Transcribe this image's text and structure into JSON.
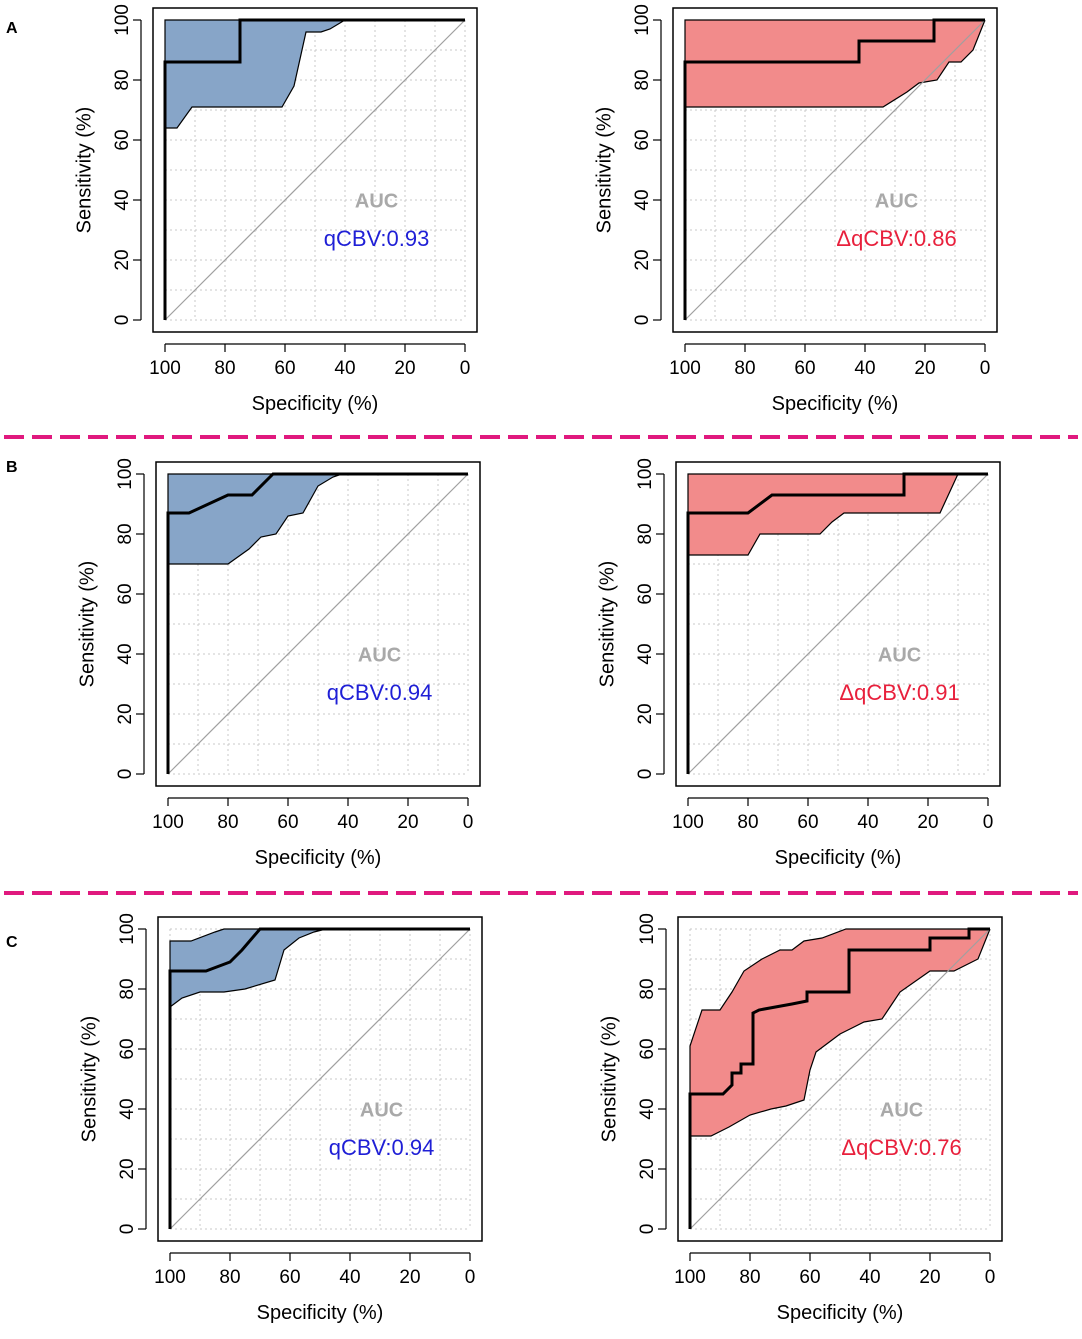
{
  "colors": {
    "separator": "#e0197e",
    "blue_fill": "#87a5c8",
    "red_fill": "#f28b8b",
    "blue_text": "#1f1fd6",
    "red_text": "#e8203c",
    "auc_title": "#a9a9a9",
    "diagonal": "#a0a0a0",
    "grid": "#c8c8c8"
  },
  "panel_labels": [
    "A",
    "B",
    "C"
  ],
  "chart_data": [
    {
      "type": "line",
      "row": "A",
      "title": "",
      "xlabel": "Specificity (%)",
      "ylabel": "Sensitivity (%)",
      "xlim": [
        100,
        0
      ],
      "ylim": [
        0,
        100
      ],
      "xticks": [
        "100",
        "80",
        "60",
        "40",
        "20",
        "0"
      ],
      "yticks": [
        "0",
        "20",
        "40",
        "60",
        "80",
        "100"
      ],
      "auc_title": "AUC",
      "auc_label": "qCBV:0.93",
      "fill": "blue",
      "roc": [
        [
          100,
          0
        ],
        [
          100,
          86
        ],
        [
          75,
          86
        ],
        [
          75,
          100
        ],
        [
          0,
          100
        ]
      ],
      "ci_upper": [
        [
          100,
          86
        ],
        [
          100,
          100
        ],
        [
          0,
          100
        ]
      ],
      "ci_lower": [
        [
          100,
          64
        ],
        [
          96,
          64
        ],
        [
          91,
          71
        ],
        [
          88,
          71
        ],
        [
          61,
          71
        ],
        [
          57,
          78
        ],
        [
          53,
          96
        ],
        [
          48,
          96
        ],
        [
          45,
          97
        ],
        [
          40,
          100
        ],
        [
          0,
          100
        ]
      ]
    },
    {
      "type": "line",
      "row": "A",
      "title": "",
      "xlabel": "Specificity (%)",
      "ylabel": "Sensitivity (%)",
      "xlim": [
        100,
        0
      ],
      "ylim": [
        0,
        100
      ],
      "xticks": [
        "100",
        "80",
        "60",
        "40",
        "20",
        "0"
      ],
      "yticks": [
        "0",
        "20",
        "40",
        "60",
        "80",
        "100"
      ],
      "auc_title": "AUC",
      "auc_label": "ΔqCBV:0.86",
      "fill": "red",
      "roc": [
        [
          100,
          0
        ],
        [
          100,
          86
        ],
        [
          42,
          86
        ],
        [
          42,
          93
        ],
        [
          17,
          93
        ],
        [
          17,
          100
        ],
        [
          0,
          100
        ]
      ],
      "ci_upper": [
        [
          100,
          71
        ],
        [
          100,
          100
        ],
        [
          0,
          100
        ]
      ],
      "ci_lower": [
        [
          100,
          71
        ],
        [
          34,
          71
        ],
        [
          26,
          76
        ],
        [
          22,
          79
        ],
        [
          16,
          80
        ],
        [
          12,
          86
        ],
        [
          8,
          86
        ],
        [
          4,
          90
        ],
        [
          0,
          100
        ]
      ]
    },
    {
      "type": "line",
      "row": "B",
      "title": "",
      "xlabel": "Specificity (%)",
      "ylabel": "Sensitivity (%)",
      "xlim": [
        100,
        0
      ],
      "ylim": [
        0,
        100
      ],
      "xticks": [
        "100",
        "80",
        "60",
        "40",
        "20",
        "0"
      ],
      "yticks": [
        "0",
        "20",
        "40",
        "60",
        "80",
        "100"
      ],
      "auc_title": "AUC",
      "auc_label": "qCBV:0.94",
      "fill": "blue",
      "roc": [
        [
          100,
          0
        ],
        [
          100,
          87
        ],
        [
          93,
          87
        ],
        [
          80,
          93
        ],
        [
          72,
          93
        ],
        [
          65,
          100
        ],
        [
          0,
          100
        ]
      ],
      "ci_upper": [
        [
          100,
          70
        ],
        [
          100,
          100
        ],
        [
          0,
          100
        ]
      ],
      "ci_lower": [
        [
          100,
          70
        ],
        [
          80,
          70
        ],
        [
          73,
          75
        ],
        [
          69,
          79
        ],
        [
          64,
          80
        ],
        [
          60,
          86
        ],
        [
          55,
          87
        ],
        [
          50,
          96
        ],
        [
          45,
          99
        ],
        [
          42,
          100
        ],
        [
          0,
          100
        ]
      ]
    },
    {
      "type": "line",
      "row": "B",
      "title": "",
      "xlabel": "Specificity (%)",
      "ylabel": "Sensitivity (%)",
      "xlim": [
        100,
        0
      ],
      "ylim": [
        0,
        100
      ],
      "xticks": [
        "100",
        "80",
        "60",
        "40",
        "20",
        "0"
      ],
      "yticks": [
        "0",
        "20",
        "40",
        "60",
        "80",
        "100"
      ],
      "auc_title": "AUC",
      "auc_label": "ΔqCBV:0.91",
      "fill": "red",
      "roc": [
        [
          100,
          0
        ],
        [
          100,
          87
        ],
        [
          80,
          87
        ],
        [
          72,
          93
        ],
        [
          28,
          93
        ],
        [
          28,
          100
        ],
        [
          0,
          100
        ]
      ],
      "ci_upper": [
        [
          100,
          73
        ],
        [
          100,
          100
        ],
        [
          0,
          100
        ]
      ],
      "ci_lower": [
        [
          100,
          73
        ],
        [
          80,
          73
        ],
        [
          76,
          80
        ],
        [
          56,
          80
        ],
        [
          52,
          84
        ],
        [
          48,
          87
        ],
        [
          16,
          87
        ],
        [
          10,
          100
        ],
        [
          0,
          100
        ]
      ]
    },
    {
      "type": "line",
      "row": "C",
      "title": "",
      "xlabel": "Specificity (%)",
      "ylabel": "Sensitivity (%)",
      "xlim": [
        100,
        0
      ],
      "ylim": [
        0,
        100
      ],
      "xticks": [
        "100",
        "80",
        "60",
        "40",
        "20",
        "0"
      ],
      "yticks": [
        "0",
        "20",
        "40",
        "60",
        "80",
        "100"
      ],
      "auc_title": "AUC",
      "auc_label": "qCBV:0.94",
      "fill": "blue",
      "roc": [
        [
          100,
          0
        ],
        [
          100,
          86
        ],
        [
          88,
          86
        ],
        [
          80,
          89
        ],
        [
          76,
          93
        ],
        [
          70,
          100
        ],
        [
          0,
          100
        ]
      ],
      "ci_upper": [
        [
          100,
          74
        ],
        [
          100,
          96
        ],
        [
          93,
          96
        ],
        [
          85,
          99
        ],
        [
          82,
          100
        ],
        [
          0,
          100
        ]
      ],
      "ci_lower": [
        [
          100,
          74
        ],
        [
          96,
          77
        ],
        [
          90,
          79
        ],
        [
          82,
          79
        ],
        [
          75,
          80
        ],
        [
          65,
          83
        ],
        [
          62,
          93
        ],
        [
          57,
          97
        ],
        [
          52,
          99
        ],
        [
          48,
          100
        ],
        [
          0,
          100
        ]
      ]
    },
    {
      "type": "line",
      "row": "C",
      "title": "",
      "xlabel": "Specificity (%)",
      "ylabel": "Sensitivity (%)",
      "xlim": [
        100,
        0
      ],
      "ylim": [
        0,
        100
      ],
      "xticks": [
        "100",
        "80",
        "60",
        "40",
        "20",
        "0"
      ],
      "yticks": [
        "0",
        "20",
        "40",
        "60",
        "80",
        "100"
      ],
      "auc_title": "AUC",
      "auc_label": "ΔqCBV:0.76",
      "fill": "red",
      "roc": [
        [
          100,
          0
        ],
        [
          100,
          45
        ],
        [
          89,
          45
        ],
        [
          86,
          48
        ],
        [
          86,
          52
        ],
        [
          83,
          52
        ],
        [
          83,
          55
        ],
        [
          79,
          55
        ],
        [
          79,
          72
        ],
        [
          77,
          73
        ],
        [
          66,
          75
        ],
        [
          61,
          76
        ],
        [
          61,
          79
        ],
        [
          47,
          79
        ],
        [
          47,
          93
        ],
        [
          20,
          93
        ],
        [
          20,
          97
        ],
        [
          7,
          97
        ],
        [
          7,
          100
        ],
        [
          0,
          100
        ]
      ],
      "ci_upper": [
        [
          100,
          31
        ],
        [
          100,
          61
        ],
        [
          96,
          73
        ],
        [
          90,
          73
        ],
        [
          86,
          79
        ],
        [
          82,
          86
        ],
        [
          76,
          90
        ],
        [
          70,
          93
        ],
        [
          66,
          93
        ],
        [
          62,
          96
        ],
        [
          56,
          97
        ],
        [
          48,
          100
        ],
        [
          0,
          100
        ]
      ],
      "ci_lower": [
        [
          100,
          31
        ],
        [
          93,
          31
        ],
        [
          87,
          34
        ],
        [
          80,
          38
        ],
        [
          73,
          40
        ],
        [
          68,
          41
        ],
        [
          62,
          43
        ],
        [
          60,
          53
        ],
        [
          58,
          59
        ],
        [
          54,
          62
        ],
        [
          50,
          65
        ],
        [
          46,
          67
        ],
        [
          42,
          69
        ],
        [
          36,
          70
        ],
        [
          30,
          79
        ],
        [
          20,
          86
        ],
        [
          12,
          86
        ],
        [
          4,
          90
        ],
        [
          0,
          100
        ]
      ]
    }
  ]
}
